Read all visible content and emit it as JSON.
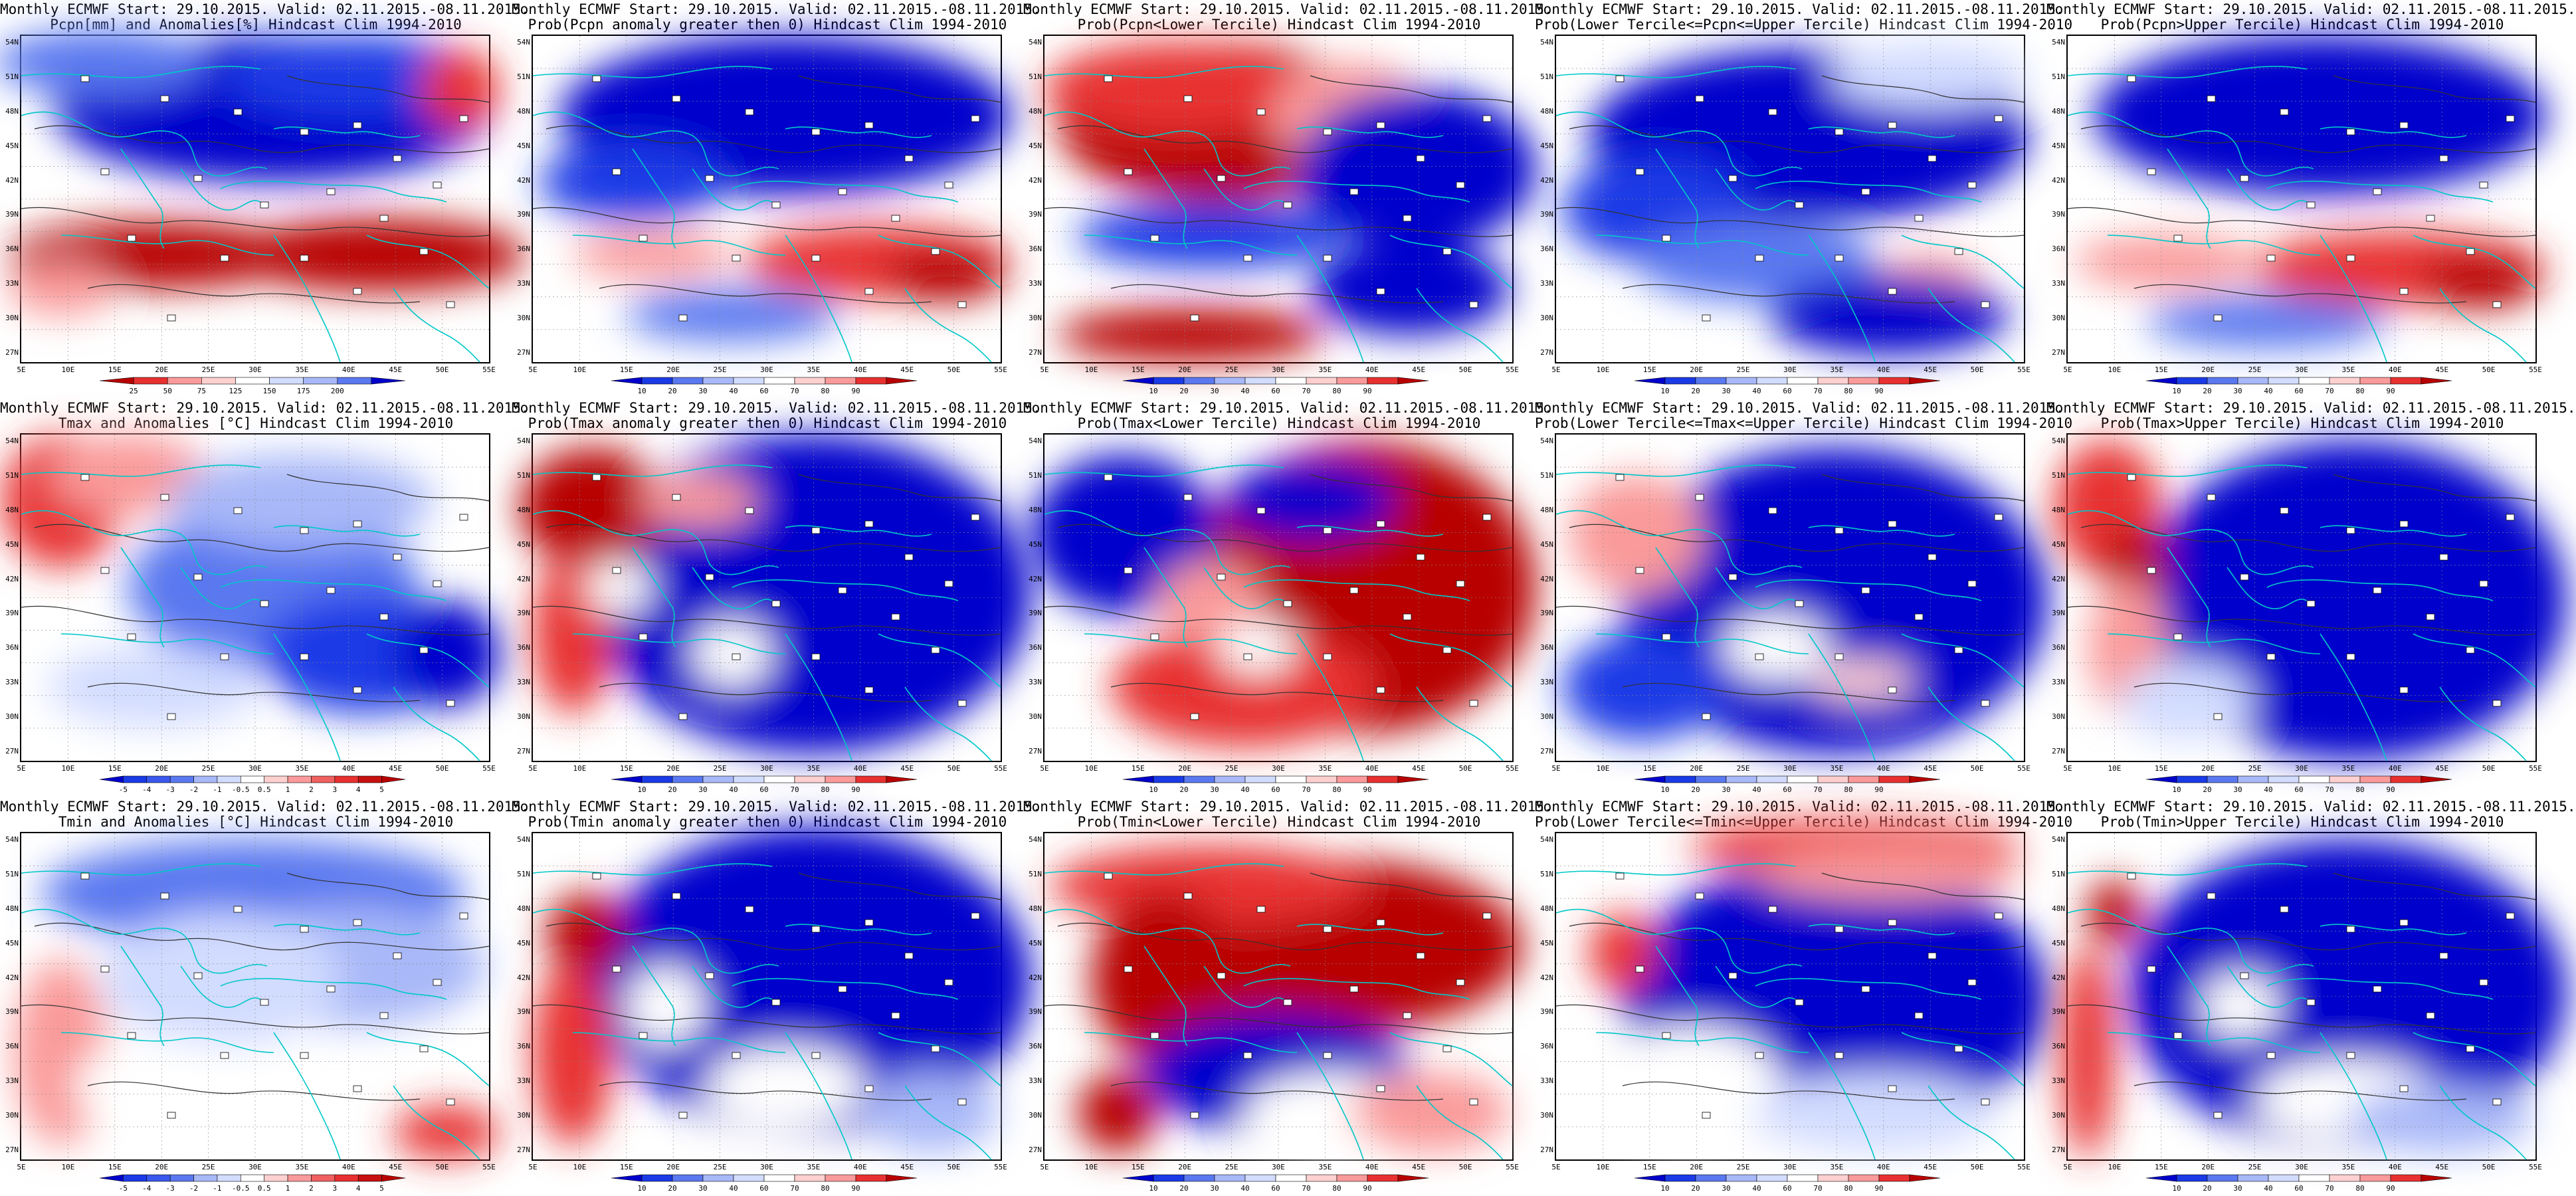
{
  "lat_labels": [
    "54N",
    "51N",
    "48N",
    "45N",
    "42N",
    "39N",
    "36N",
    "33N",
    "30N",
    "27N"
  ],
  "lon_labels": [
    "5E",
    "10E",
    "15E",
    "20E",
    "25E",
    "30E",
    "35E",
    "40E",
    "45E",
    "50E",
    "55E"
  ],
  "colors": {
    "dark_blue": "#0000cc",
    "blue": "#1a3ae6",
    "mid_blue": "#5a78f0",
    "light_blue": "#a8b8f8",
    "pale_blue": "#d2dcff",
    "white": "#ffffff",
    "pale_red": "#ffd0d0",
    "light_red": "#fa9a9a",
    "red": "#e83030",
    "dark_red": "#b80000",
    "coast": "#00c8c8",
    "contour": "#333333"
  },
  "scales": {
    "pcpn": {
      "labels": [
        "25",
        "50",
        "75",
        "125",
        "150",
        "175",
        "200"
      ],
      "colors": [
        "#b80000",
        "#e83030",
        "#fa9a9a",
        "#ffd0d0",
        "#ffffff",
        "#d2dcff",
        "#a8b8f8",
        "#5a78f0",
        "#0000cc"
      ]
    },
    "prob": {
      "labels": [
        "10",
        "20",
        "30",
        "40",
        "60",
        "70",
        "80",
        "90"
      ],
      "colors": [
        "#0000cc",
        "#1a3ae6",
        "#5a78f0",
        "#a8b8f8",
        "#d2dcff",
        "#ffffff",
        "#ffd0d0",
        "#fa9a9a",
        "#e83030",
        "#b80000"
      ]
    },
    "temp": {
      "labels": [
        "-5",
        "-4",
        "-3",
        "-2",
        "-1",
        "-0.5",
        "0.5",
        "1",
        "2",
        "3",
        "4",
        "5"
      ],
      "colors": [
        "#0000cc",
        "#1a3ae6",
        "#3a58ec",
        "#5a78f0",
        "#a8b8f8",
        "#d2dcff",
        "#ffffff",
        "#ffd0d0",
        "#fa9a9a",
        "#f06060",
        "#e83030",
        "#c81010",
        "#b80000"
      ]
    }
  },
  "panels": [
    {
      "id": "pcpn-anom",
      "title1": "Monthly ECMWF Start: 29.10.2015. Valid: 02.11.2015.-08.11.2015.",
      "title2": "Pcpn[mm] and Anomalies[%] Hindcast Clim 1994-2010",
      "scale": "pcpn",
      "blobs": [
        [
          "dark_blue",
          380,
          110,
          330,
          110
        ],
        [
          "blue",
          500,
          60,
          200,
          60
        ],
        [
          "mid_blue",
          120,
          40,
          160,
          50
        ],
        [
          "dark_red",
          200,
          330,
          220,
          50
        ],
        [
          "dark_red",
          540,
          330,
          220,
          55
        ],
        [
          "red",
          660,
          80,
          60,
          60
        ],
        [
          "light_red",
          60,
          380,
          80,
          40
        ]
      ]
    },
    {
      "id": "pcpn-prob-pos",
      "title1": "Monthly ECMWF Start: 29.10.2015. Valid: 02.11.2015.-08.11.2015.",
      "title2": "Prob(Pcpn anomaly greater then 0) Hindcast Clim 1994-2010",
      "scale": "prob",
      "blobs": [
        [
          "dark_blue",
          380,
          120,
          340,
          120
        ],
        [
          "blue",
          150,
          220,
          140,
          60
        ],
        [
          "red",
          520,
          340,
          200,
          55
        ],
        [
          "dark_red",
          620,
          360,
          90,
          40
        ],
        [
          "light_red",
          180,
          330,
          120,
          35
        ],
        [
          "mid_blue",
          300,
          420,
          160,
          40
        ]
      ]
    },
    {
      "id": "pcpn-prob-lower",
      "title1": "Monthly ECMWF Start: 29.10.2015. Valid: 02.11.2015.-08.11.2015.",
      "title2": "Prob(Pcpn<Lower Tercile) Hindcast Clim 1994-2010",
      "scale": "prob",
      "blobs": [
        [
          "dark_red",
          260,
          130,
          240,
          120
        ],
        [
          "red",
          200,
          80,
          200,
          70
        ],
        [
          "light_red",
          460,
          120,
          120,
          80
        ],
        [
          "dark_blue",
          560,
          200,
          180,
          120
        ],
        [
          "blue",
          250,
          300,
          200,
          50
        ],
        [
          "dark_red",
          220,
          450,
          200,
          40
        ],
        [
          "dark_blue",
          550,
          380,
          150,
          70
        ]
      ]
    },
    {
      "id": "pcpn-prob-middle",
      "title1": "Monthly ECMWF Start: 29.10.2015. Valid: 02.11.2015.-08.11.2015.",
      "title2": "Prob(Lower Tercile<=Pcpn<=Upper Tercile) Hindcast Clim 1994-2010",
      "scale": "prob",
      "blobs": [
        [
          "dark_blue",
          380,
          150,
          330,
          130
        ],
        [
          "blue",
          150,
          260,
          140,
          80
        ],
        [
          "pale_blue",
          560,
          60,
          150,
          50
        ],
        [
          "mid_blue",
          300,
          340,
          180,
          60
        ],
        [
          "light_red",
          560,
          360,
          80,
          30
        ],
        [
          "dark_blue",
          500,
          420,
          180,
          60
        ]
      ]
    },
    {
      "id": "pcpn-prob-upper",
      "title1": "Monthly ECMWF Start: 29.10.2015. Valid: 02.11.2015.-08.11.2015.",
      "title2": "Prob(Pcpn>Upper Tercile) Hindcast Clim 1994-2010",
      "scale": "prob",
      "blobs": [
        [
          "dark_blue",
          380,
          120,
          340,
          120
        ],
        [
          "red",
          500,
          350,
          220,
          55
        ],
        [
          "dark_red",
          620,
          370,
          90,
          40
        ],
        [
          "light_red",
          150,
          340,
          140,
          40
        ],
        [
          "mid_blue",
          300,
          430,
          180,
          40
        ]
      ]
    },
    {
      "id": "tmax-anom",
      "title1": "Monthly ECMWF Start: 29.10.2015. Valid: 02.11.2015.-08.11.2015.",
      "title2": "Tmax and Anomalies [°C] Hindcast Clim 1994-2010",
      "scale": "temp",
      "blobs": [
        [
          "red",
          60,
          100,
          90,
          100
        ],
        [
          "light_red",
          160,
          60,
          120,
          60
        ],
        [
          "mid_blue",
          380,
          230,
          220,
          120
        ],
        [
          "blue",
          520,
          330,
          160,
          90
        ],
        [
          "dark_blue",
          640,
          330,
          80,
          80
        ],
        [
          "pale_blue",
          200,
          380,
          160,
          60
        ],
        [
          "light_blue",
          420,
          100,
          200,
          70
        ]
      ]
    },
    {
      "id": "tmax-prob-pos",
      "title1": "Monthly ECMWF Start: 29.10.2015. Valid: 02.11.2015.-08.11.2015.",
      "title2": "Prob(Tmax anomaly greater then 0) Hindcast Clim 1994-2010",
      "scale": "prob",
      "blobs": [
        [
          "dark_blue",
          420,
          240,
          330,
          240
        ],
        [
          "dark_red",
          90,
          110,
          110,
          90
        ],
        [
          "red",
          60,
          300,
          60,
          120
        ],
        [
          "white",
          130,
          230,
          50,
          40
        ],
        [
          "white",
          300,
          330,
          60,
          50
        ],
        [
          "light_red",
          250,
          100,
          90,
          40
        ]
      ]
    },
    {
      "id": "tmax-prob-lower",
      "title1": "Monthly ECMWF Start: 29.10.2015. Valid: 02.11.2015.-08.11.2015.",
      "title2": "Prob(Tmax<Lower Tercile) Hindcast Clim 1994-2010",
      "scale": "prob",
      "blobs": [
        [
          "dark_red",
          480,
          230,
          260,
          220
        ],
        [
          "red",
          300,
          380,
          200,
          90
        ],
        [
          "dark_blue",
          120,
          150,
          140,
          120
        ],
        [
          "dark_blue",
          400,
          100,
          130,
          60
        ],
        [
          "light_red",
          250,
          250,
          80,
          60
        ],
        [
          "white",
          320,
          320,
          60,
          40
        ]
      ]
    },
    {
      "id": "tmax-prob-middle",
      "title1": "Monthly ECMWF Start: 29.10.2015. Valid: 02.11.2015.-08.11.2015.",
      "title2": "Prob(Lower Tercile<=Tmax<=Upper Tercile) Hindcast Clim 1994-2010",
      "scale": "prob",
      "blobs": [
        [
          "dark_blue",
          420,
          250,
          320,
          230
        ],
        [
          "light_red",
          120,
          150,
          100,
          90
        ],
        [
          "white",
          330,
          320,
          80,
          50
        ],
        [
          "blue",
          130,
          380,
          120,
          80
        ],
        [
          "pale_red",
          460,
          370,
          80,
          30
        ]
      ]
    },
    {
      "id": "tmax-prob-upper",
      "title1": "Monthly ECMWF Start: 29.10.2015. Valid: 02.11.2015.-08.11.2015.",
      "title2": "Prob(Tmax>Upper Tercile) Hindcast Clim 1994-2010",
      "scale": "prob",
      "blobs": [
        [
          "dark_blue",
          430,
          250,
          320,
          240
        ],
        [
          "red",
          60,
          110,
          80,
          100
        ],
        [
          "dark_red",
          100,
          200,
          50,
          60
        ],
        [
          "light_red",
          90,
          320,
          60,
          100
        ],
        [
          "pale_blue",
          180,
          400,
          100,
          60
        ]
      ]
    },
    {
      "id": "tmin-anom",
      "title1": "Monthly ECMWF Start: 29.10.2015. Valid: 02.11.2015.-08.11.2015.",
      "title2": "Tmin and Anomalies [°C] Hindcast Clim 1994-2010",
      "scale": "temp",
      "blobs": [
        [
          "mid_blue",
          350,
          90,
          320,
          80
        ],
        [
          "light_blue",
          500,
          200,
          200,
          90
        ],
        [
          "light_red",
          60,
          330,
          70,
          140
        ],
        [
          "pale_blue",
          300,
          220,
          180,
          100
        ],
        [
          "red",
          640,
          450,
          80,
          40
        ],
        [
          "white",
          220,
          380,
          140,
          70
        ]
      ]
    },
    {
      "id": "tmin-prob-pos",
      "title1": "Monthly ECMWF Start: 29.10.2015. Valid: 02.11.2015.-08.11.2015.",
      "title2": "Prob(Tmin anomaly greater then 0) Hindcast Clim 1994-2010",
      "scale": "prob",
      "blobs": [
        [
          "dark_blue",
          420,
          220,
          330,
          230
        ],
        [
          "red",
          60,
          330,
          60,
          140
        ],
        [
          "dark_red",
          80,
          150,
          60,
          60
        ],
        [
          "white",
          380,
          380,
          120,
          60
        ],
        [
          "light_blue",
          600,
          420,
          100,
          60
        ],
        [
          "white",
          200,
          260,
          60,
          60
        ]
      ]
    },
    {
      "id": "tmin-prob-lower",
      "title1": "Monthly ECMWF Start: 29.10.2015. Valid: 02.11.2015.-08.11.2015.",
      "title2": "Prob(Tmin<Lower Tercile) Hindcast Clim 1994-2010",
      "scale": "prob",
      "blobs": [
        [
          "dark_red",
          440,
          170,
          280,
          130
        ],
        [
          "red",
          250,
          80,
          240,
          60
        ],
        [
          "dark_red",
          180,
          220,
          110,
          130
        ],
        [
          "dark_blue",
          350,
          360,
          200,
          90
        ],
        [
          "white",
          440,
          420,
          140,
          60
        ],
        [
          "dark_red",
          110,
          420,
          60,
          60
        ],
        [
          "light_red",
          580,
          420,
          120,
          60
        ]
      ]
    },
    {
      "id": "tmin-prob-middle",
      "title1": "Monthly ECMWF Start: 29.10.2015. Valid: 02.11.2015.-08.11.2015.",
      "title2": "Prob(Lower Tercile<=Tmin<=Upper Tercile) Hindcast Clim 1994-2010",
      "scale": "prob",
      "blobs": [
        [
          "dark_blue",
          420,
          250,
          320,
          210
        ],
        [
          "red",
          450,
          20,
          250,
          40
        ],
        [
          "light_red",
          500,
          60,
          200,
          40
        ],
        [
          "white",
          200,
          380,
          140,
          90
        ],
        [
          "pale_blue",
          480,
          420,
          180,
          60
        ],
        [
          "red",
          100,
          180,
          50,
          60
        ]
      ]
    },
    {
      "id": "tmin-prob-upper",
      "title1": "Monthly ECMWF Start: 29.10.2015. Valid: 02.11.2015.-08.11.2015.",
      "title2": "Prob(Tmin>Upper Tercile) Hindcast Clim 1994-2010",
      "scale": "prob",
      "blobs": [
        [
          "dark_blue",
          420,
          240,
          330,
          230
        ],
        [
          "red",
          30,
          330,
          40,
          160
        ],
        [
          "dark_red",
          70,
          120,
          40,
          50
        ],
        [
          "white",
          420,
          400,
          140,
          60
        ],
        [
          "light_blue",
          560,
          430,
          140,
          50
        ],
        [
          "white",
          260,
          260,
          60,
          50
        ]
      ]
    }
  ]
}
